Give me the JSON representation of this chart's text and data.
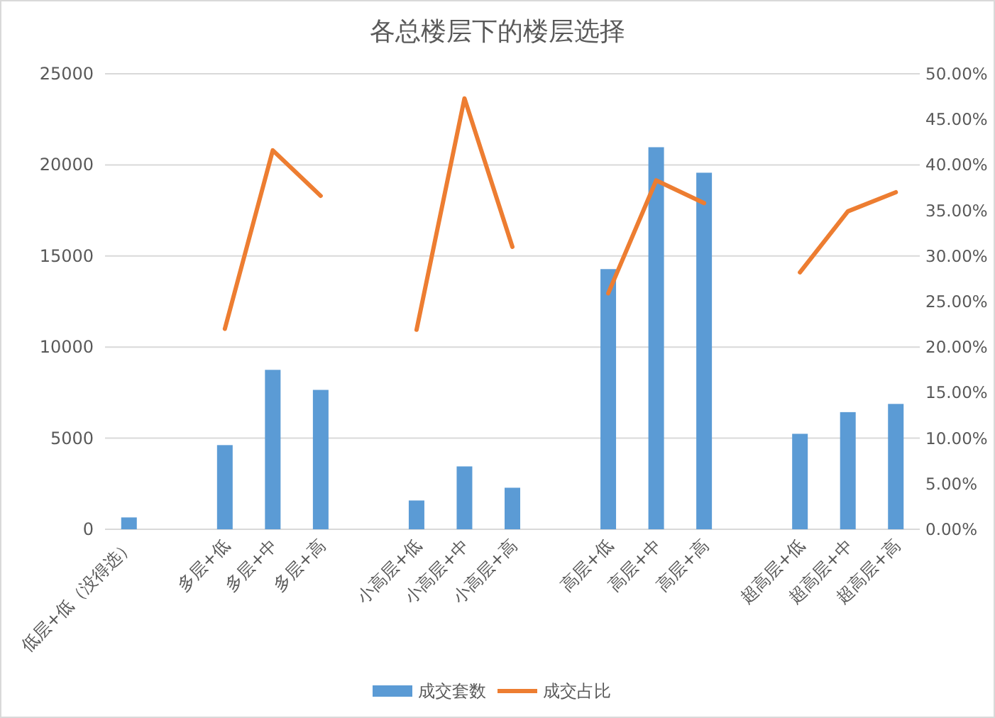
{
  "chart_data": {
    "type": "bar",
    "title": "各总楼层下的楼层选择",
    "categories": [
      "低层+低（没得选）",
      null,
      "多层+低",
      "多层+中",
      "多层+高",
      null,
      "小高层+低",
      "小高层+中",
      "小高层+高",
      null,
      "高层+低",
      "高层+中",
      "高层+高",
      null,
      "超高层+低",
      "超高层+中",
      "超高层+高"
    ],
    "series": [
      {
        "name": "成交套数",
        "color": "#5b9bd5",
        "values": [
          650,
          null,
          4620,
          8750,
          7650,
          null,
          1580,
          3450,
          2280,
          null,
          14280,
          20970,
          19570,
          null,
          5240,
          6430,
          6880
        ]
      },
      {
        "name": "成交占比",
        "type": "line",
        "axis": "y2",
        "color": "#ed7d31",
        "values": [
          null,
          null,
          22.0,
          41.6,
          36.6,
          null,
          21.9,
          47.3,
          31.0,
          null,
          25.9,
          38.3,
          35.8,
          null,
          28.2,
          34.9,
          37.0
        ]
      }
    ],
    "ylim": [
      0,
      25000
    ],
    "yticks": [
      0,
      5000,
      10000,
      15000,
      20000,
      25000
    ],
    "y2lim": [
      0,
      50
    ],
    "y2ticks": [
      {
        "value": 0,
        "label": "0.00%"
      },
      {
        "value": 5,
        "label": "5.00%"
      },
      {
        "value": 10,
        "label": "10.00%"
      },
      {
        "value": 15,
        "label": "15.00%"
      },
      {
        "value": 20,
        "label": "20.00%"
      },
      {
        "value": 25,
        "label": "25.00%"
      },
      {
        "value": 30,
        "label": "30.00%"
      },
      {
        "value": 35,
        "label": "35.00%"
      },
      {
        "value": 40,
        "label": "40.00%"
      },
      {
        "value": 45,
        "label": "45.00%"
      },
      {
        "value": 50,
        "label": "50.00%"
      }
    ],
    "grid": "y",
    "legend": "bottom",
    "marker": "none",
    "line_style": "solid"
  }
}
